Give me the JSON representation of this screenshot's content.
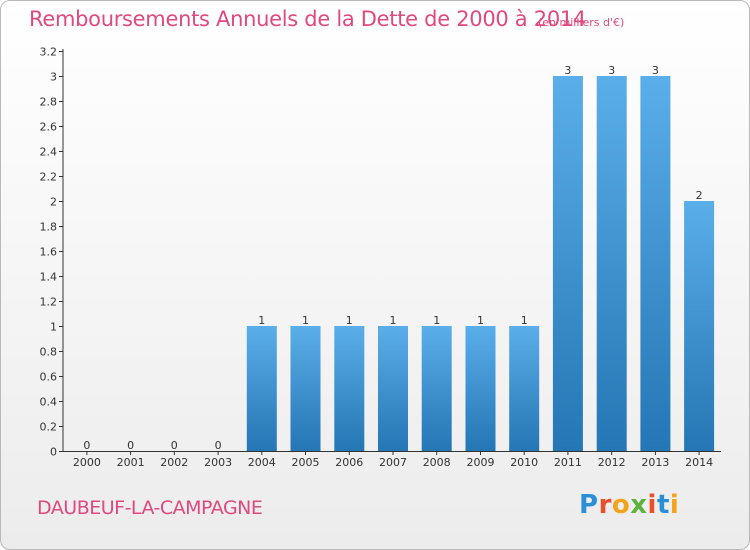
{
  "header": {
    "title": "Remboursements Annuels de la Dette de 2000 à 2014",
    "unit": "(en milliers d'€)"
  },
  "footer": {
    "commune": "DAUBEUF-LA-CAMPAGNE",
    "logo_letters": [
      "P",
      "r",
      "o",
      "x",
      "i",
      "t",
      "i"
    ],
    "logo_colors": [
      "#2a8fd6",
      "#e94f2a",
      "#f3a41c",
      "#5db33b",
      "#e94f2a",
      "#2a8fd6",
      "#f3a41c"
    ]
  },
  "colors": {
    "title": "#e0497f",
    "bar_light": "#5aaee9",
    "bar_dark": "#2576b4",
    "axis": "#333333"
  },
  "chart_data": {
    "type": "bar",
    "categories": [
      "2000",
      "2001",
      "2002",
      "2003",
      "2004",
      "2005",
      "2006",
      "2007",
      "2008",
      "2009",
      "2010",
      "2011",
      "2012",
      "2013",
      "2014"
    ],
    "values": [
      0,
      0,
      0,
      0,
      1,
      1,
      1,
      1,
      1,
      1,
      1,
      3,
      3,
      3,
      2
    ],
    "data_labels": [
      "0",
      "0",
      "0",
      "0",
      "1",
      "1",
      "1",
      "1",
      "1",
      "1",
      "1",
      "3",
      "3",
      "3",
      "2"
    ],
    "ylim": [
      0,
      3.2
    ],
    "yticks": [
      {
        "v": 0,
        "label": "0"
      },
      {
        "v": 0.2,
        "label": "0.2"
      },
      {
        "v": 0.4,
        "label": "0.4"
      },
      {
        "v": 0.6,
        "label": "0.6"
      },
      {
        "v": 0.8,
        "label": "0.8"
      },
      {
        "v": 1.0,
        "label": "1"
      },
      {
        "v": 1.2,
        "label": "1.2"
      },
      {
        "v": 1.4,
        "label": "1.4"
      },
      {
        "v": 1.6,
        "label": "1.6"
      },
      {
        "v": 1.8,
        "label": "1.8"
      },
      {
        "v": 2.0,
        "label": "2"
      },
      {
        "v": 2.2,
        "label": "2.2"
      },
      {
        "v": 2.4,
        "label": "2.4"
      },
      {
        "v": 2.6,
        "label": "2.6"
      },
      {
        "v": 2.8,
        "label": "2.8"
      },
      {
        "v": 3.0,
        "label": "3"
      },
      {
        "v": 3.2,
        "label": "3.2"
      }
    ],
    "grid": false,
    "legend": "none"
  }
}
